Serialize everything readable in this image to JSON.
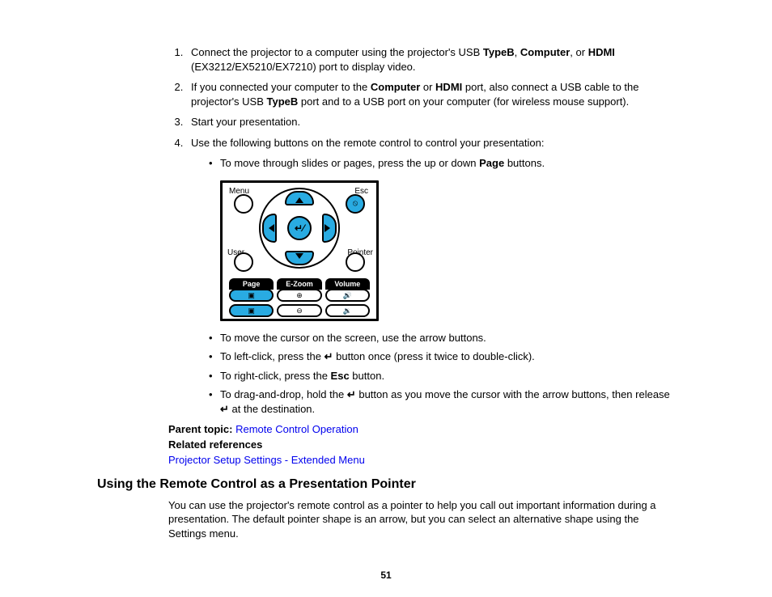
{
  "steps": {
    "s1_a": "Connect the projector to a computer using the projector's USB ",
    "s1_b": "TypeB",
    "s1_c": ", ",
    "s1_d": "Computer",
    "s1_e": ", or ",
    "s1_f": "HDMI",
    "s1_g": " (EX3212/EX5210/EX7210) port to display video.",
    "s2_a": "If you connected your computer to the ",
    "s2_b": "Computer",
    "s2_c": " or ",
    "s2_d": "HDMI",
    "s2_e": " port, also connect a USB cable to the projector's USB ",
    "s2_f": "TypeB",
    "s2_g": " port and to a USB port on your computer (for wireless mouse support).",
    "s3": "Start your presentation.",
    "s4": "Use the following buttons on the remote control to control your presentation:"
  },
  "bullets": {
    "b1_a": "To move through slides or pages, press the up or down ",
    "b1_b": "Page",
    "b1_c": " buttons.",
    "b2": "To move the cursor on the screen, use the arrow buttons.",
    "b3_a": "To left-click, press the ",
    "b3_b": " button once (press it twice to double-click).",
    "b4_a": "To right-click, press the ",
    "b4_b": "Esc",
    "b4_c": " button.",
    "b5_a": "To drag-and-drop, hold the ",
    "b5_b": " button as you move the cursor with the arrow buttons, then release ",
    "b5_c": " at the destination."
  },
  "remote": {
    "menu": "Menu",
    "esc": "Esc",
    "user": "User",
    "pointer": "Pointer",
    "page": "Page",
    "ezoom": "E-Zoom",
    "volume": "Volume",
    "center_glyph": "↵⁄",
    "esc_btn_glyph": "⦸",
    "plus": "▣",
    "minus": "▣",
    "zoom_in": "⊕",
    "zoom_out": "⊖",
    "vol_up": "🔊",
    "vol_dn": "🔉"
  },
  "parent_topic_label": "Parent topic: ",
  "parent_topic_link": "Remote Control Operation",
  "related_label": "Related references",
  "related_link": "Projector Setup Settings - Extended Menu",
  "heading": "Using the Remote Control as a Presentation Pointer",
  "body": "You can use the projector's remote control as a pointer to help you call out important information during a presentation. The default pointer shape is an arrow, but you can select an alternative shape using the Settings menu.",
  "page_number": "51",
  "enter_glyph": "↵",
  "colors": {
    "cyan": "#29abe2",
    "black": "#000000",
    "link": "#0000ee",
    "background": "#ffffff"
  }
}
